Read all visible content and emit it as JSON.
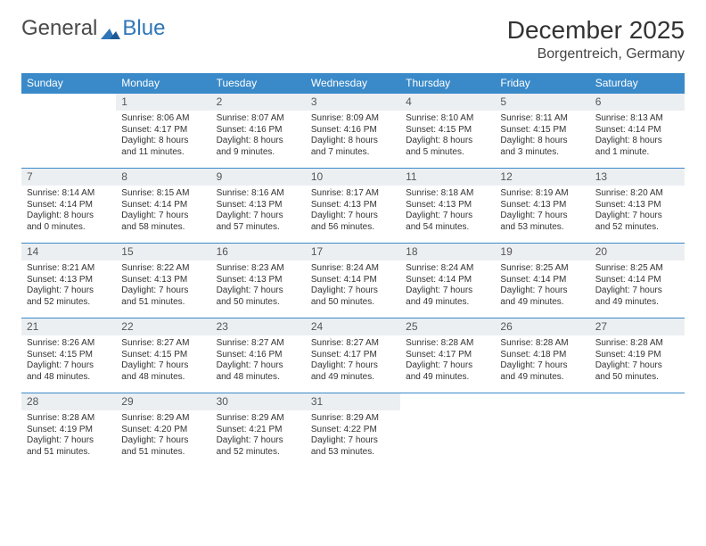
{
  "logo": {
    "text1": "General",
    "text2": "Blue"
  },
  "title": "December 2025",
  "location": "Borgentreich, Germany",
  "colors": {
    "header_bg": "#3a8ac9",
    "header_text": "#ffffff",
    "daynum_bg": "#eceff2",
    "border": "#3a8ac9",
    "logo_blue": "#2f76b8"
  },
  "weekdays": [
    "Sunday",
    "Monday",
    "Tuesday",
    "Wednesday",
    "Thursday",
    "Friday",
    "Saturday"
  ],
  "start_offset": 1,
  "days": [
    {
      "n": 1,
      "sunrise": "8:06 AM",
      "sunset": "4:17 PM",
      "daylight": "8 hours and 11 minutes."
    },
    {
      "n": 2,
      "sunrise": "8:07 AM",
      "sunset": "4:16 PM",
      "daylight": "8 hours and 9 minutes."
    },
    {
      "n": 3,
      "sunrise": "8:09 AM",
      "sunset": "4:16 PM",
      "daylight": "8 hours and 7 minutes."
    },
    {
      "n": 4,
      "sunrise": "8:10 AM",
      "sunset": "4:15 PM",
      "daylight": "8 hours and 5 minutes."
    },
    {
      "n": 5,
      "sunrise": "8:11 AM",
      "sunset": "4:15 PM",
      "daylight": "8 hours and 3 minutes."
    },
    {
      "n": 6,
      "sunrise": "8:13 AM",
      "sunset": "4:14 PM",
      "daylight": "8 hours and 1 minute."
    },
    {
      "n": 7,
      "sunrise": "8:14 AM",
      "sunset": "4:14 PM",
      "daylight": "8 hours and 0 minutes."
    },
    {
      "n": 8,
      "sunrise": "8:15 AM",
      "sunset": "4:14 PM",
      "daylight": "7 hours and 58 minutes."
    },
    {
      "n": 9,
      "sunrise": "8:16 AM",
      "sunset": "4:13 PM",
      "daylight": "7 hours and 57 minutes."
    },
    {
      "n": 10,
      "sunrise": "8:17 AM",
      "sunset": "4:13 PM",
      "daylight": "7 hours and 56 minutes."
    },
    {
      "n": 11,
      "sunrise": "8:18 AM",
      "sunset": "4:13 PM",
      "daylight": "7 hours and 54 minutes."
    },
    {
      "n": 12,
      "sunrise": "8:19 AM",
      "sunset": "4:13 PM",
      "daylight": "7 hours and 53 minutes."
    },
    {
      "n": 13,
      "sunrise": "8:20 AM",
      "sunset": "4:13 PM",
      "daylight": "7 hours and 52 minutes."
    },
    {
      "n": 14,
      "sunrise": "8:21 AM",
      "sunset": "4:13 PM",
      "daylight": "7 hours and 52 minutes."
    },
    {
      "n": 15,
      "sunrise": "8:22 AM",
      "sunset": "4:13 PM",
      "daylight": "7 hours and 51 minutes."
    },
    {
      "n": 16,
      "sunrise": "8:23 AM",
      "sunset": "4:13 PM",
      "daylight": "7 hours and 50 minutes."
    },
    {
      "n": 17,
      "sunrise": "8:24 AM",
      "sunset": "4:14 PM",
      "daylight": "7 hours and 50 minutes."
    },
    {
      "n": 18,
      "sunrise": "8:24 AM",
      "sunset": "4:14 PM",
      "daylight": "7 hours and 49 minutes."
    },
    {
      "n": 19,
      "sunrise": "8:25 AM",
      "sunset": "4:14 PM",
      "daylight": "7 hours and 49 minutes."
    },
    {
      "n": 20,
      "sunrise": "8:25 AM",
      "sunset": "4:14 PM",
      "daylight": "7 hours and 49 minutes."
    },
    {
      "n": 21,
      "sunrise": "8:26 AM",
      "sunset": "4:15 PM",
      "daylight": "7 hours and 48 minutes."
    },
    {
      "n": 22,
      "sunrise": "8:27 AM",
      "sunset": "4:15 PM",
      "daylight": "7 hours and 48 minutes."
    },
    {
      "n": 23,
      "sunrise": "8:27 AM",
      "sunset": "4:16 PM",
      "daylight": "7 hours and 48 minutes."
    },
    {
      "n": 24,
      "sunrise": "8:27 AM",
      "sunset": "4:17 PM",
      "daylight": "7 hours and 49 minutes."
    },
    {
      "n": 25,
      "sunrise": "8:28 AM",
      "sunset": "4:17 PM",
      "daylight": "7 hours and 49 minutes."
    },
    {
      "n": 26,
      "sunrise": "8:28 AM",
      "sunset": "4:18 PM",
      "daylight": "7 hours and 49 minutes."
    },
    {
      "n": 27,
      "sunrise": "8:28 AM",
      "sunset": "4:19 PM",
      "daylight": "7 hours and 50 minutes."
    },
    {
      "n": 28,
      "sunrise": "8:28 AM",
      "sunset": "4:19 PM",
      "daylight": "7 hours and 51 minutes."
    },
    {
      "n": 29,
      "sunrise": "8:29 AM",
      "sunset": "4:20 PM",
      "daylight": "7 hours and 51 minutes."
    },
    {
      "n": 30,
      "sunrise": "8:29 AM",
      "sunset": "4:21 PM",
      "daylight": "7 hours and 52 minutes."
    },
    {
      "n": 31,
      "sunrise": "8:29 AM",
      "sunset": "4:22 PM",
      "daylight": "7 hours and 53 minutes."
    }
  ],
  "labels": {
    "sunrise": "Sunrise:",
    "sunset": "Sunset:",
    "daylight": "Daylight:"
  }
}
